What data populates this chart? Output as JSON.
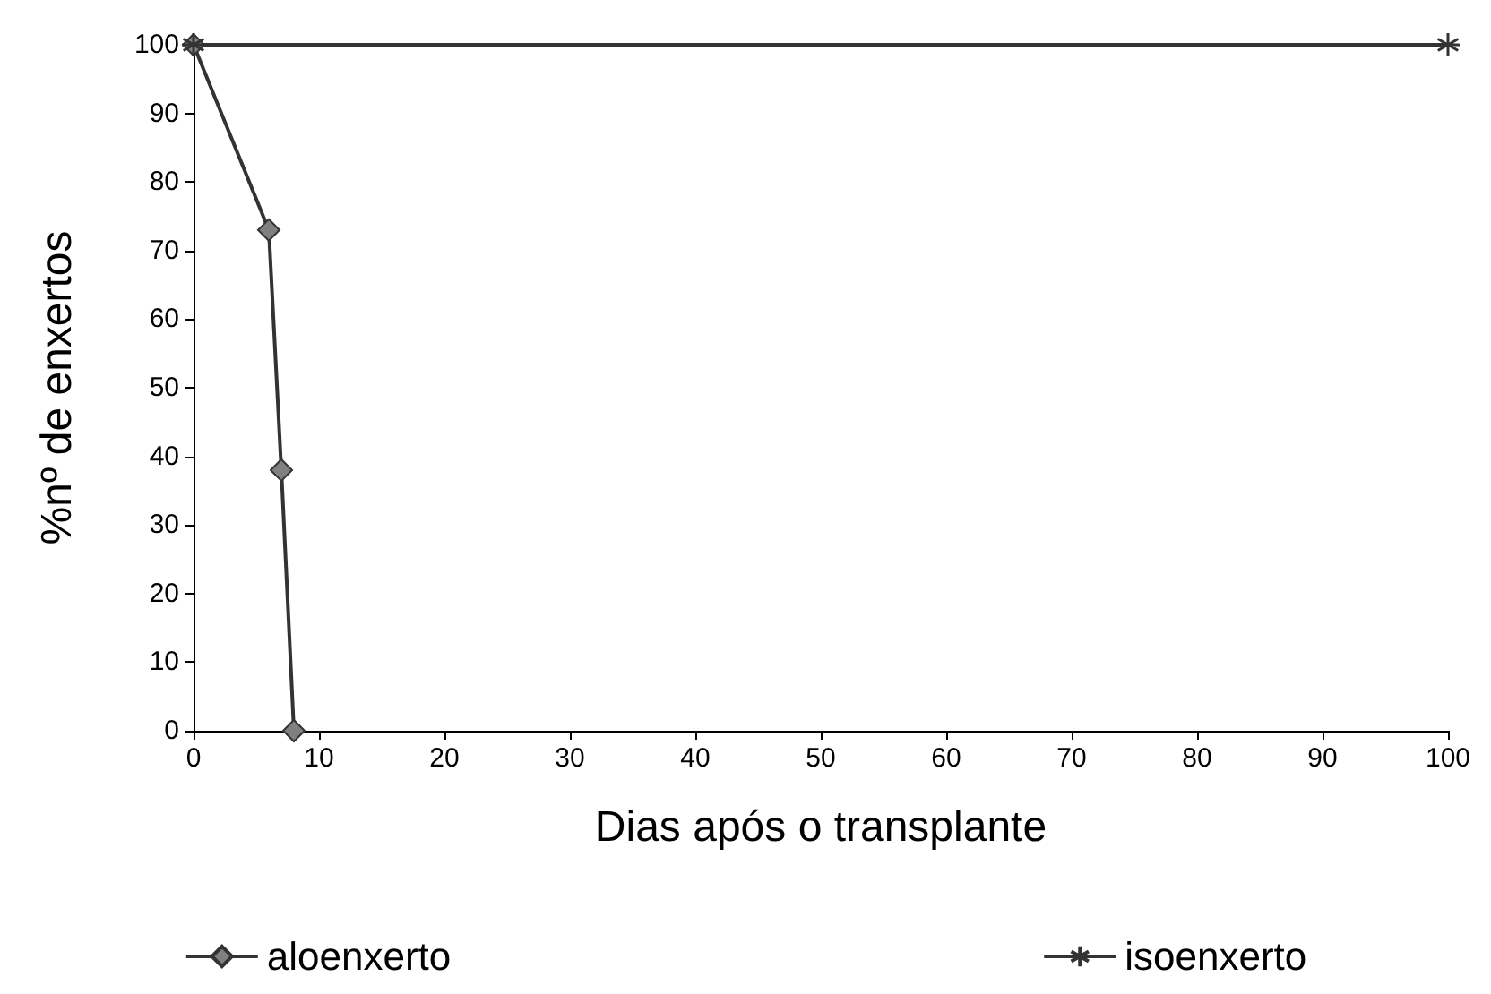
{
  "chart_data": {
    "type": "line",
    "xlabel": "Dias após o transplante",
    "ylabel": "%nº de enxertos",
    "xlim": [
      0,
      100
    ],
    "xticks": [
      0,
      10,
      20,
      30,
      40,
      50,
      60,
      70,
      80,
      90,
      100
    ],
    "ylim": [
      0,
      100
    ],
    "yticks": [
      0,
      10,
      20,
      30,
      40,
      50,
      60,
      70,
      80,
      90,
      100
    ],
    "grid": false,
    "legend": "bottom",
    "line_style": "solid",
    "series": [
      {
        "name": "aloenxerto",
        "color": "#333333",
        "x": [
          0,
          6,
          7,
          8
        ],
        "values": [
          100,
          73,
          38,
          0
        ],
        "marker": "diamond"
      },
      {
        "name": "isoenxerto",
        "color": "#333333",
        "x": [
          0,
          100
        ],
        "values": [
          100,
          100
        ],
        "marker": "cross"
      }
    ]
  }
}
